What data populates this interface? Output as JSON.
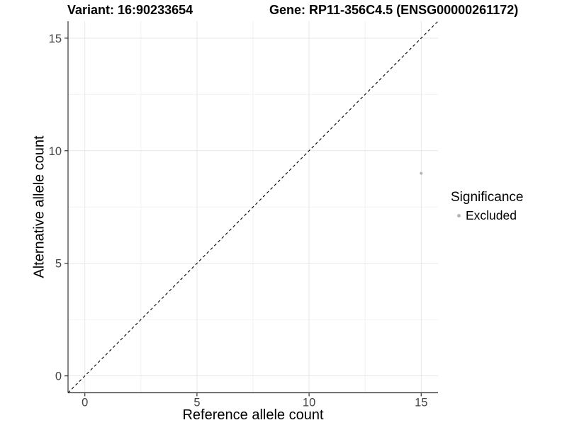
{
  "chart_data": {
    "type": "scatter",
    "title_left": "Variant: 16:90233654",
    "title_right": "Gene: RP11-356C4.5 (ENSG00000261172)",
    "xlabel": "Reference allele count",
    "ylabel": "Alternative allele count",
    "xlim": [
      -0.75,
      15.75
    ],
    "ylim": [
      -0.75,
      15.75
    ],
    "x_ticks": [
      0,
      5,
      10,
      15
    ],
    "y_ticks": [
      0,
      5,
      10,
      15
    ],
    "x_minor_ticks": [
      2.5,
      7.5,
      12.5
    ],
    "y_minor_ticks": [
      2.5,
      7.5,
      12.5
    ],
    "grid": true,
    "reference_line": {
      "type": "identity",
      "slope": 1,
      "intercept": 0,
      "style": "dashed",
      "color": "#000000"
    },
    "series": [
      {
        "name": "Excluded",
        "color": "#b5b5b5",
        "points": [
          {
            "x": 15,
            "y": 9
          }
        ]
      }
    ],
    "legend": {
      "title": "Significance",
      "position": "right",
      "items": [
        {
          "label": "Excluded",
          "color": "#b5b5b5"
        }
      ]
    },
    "style": {
      "grid_major": "#e7e7e7",
      "grid_minor": "#f2f2f2",
      "axis_line": "#333333",
      "tick_text": "#444444",
      "point_radius": 2,
      "tick_label_size": 16.5
    }
  }
}
